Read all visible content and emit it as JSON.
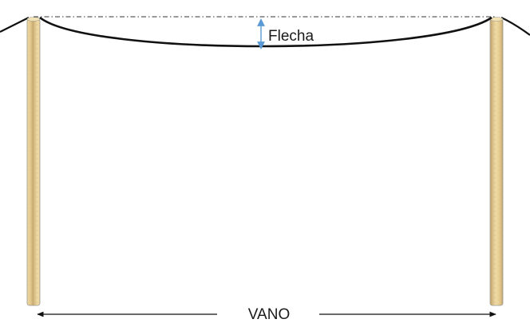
{
  "labels": {
    "sag": "Flecha",
    "span": "VANO"
  },
  "colors": {
    "cable": "#111111",
    "pole_fill": "#e8cf95",
    "pole_edge": "#9a9a9a",
    "sag_arrow": "#5b9bd5",
    "span_arrow": "#111111",
    "reference_line": "#333333",
    "text": "#1a1a1a"
  }
}
